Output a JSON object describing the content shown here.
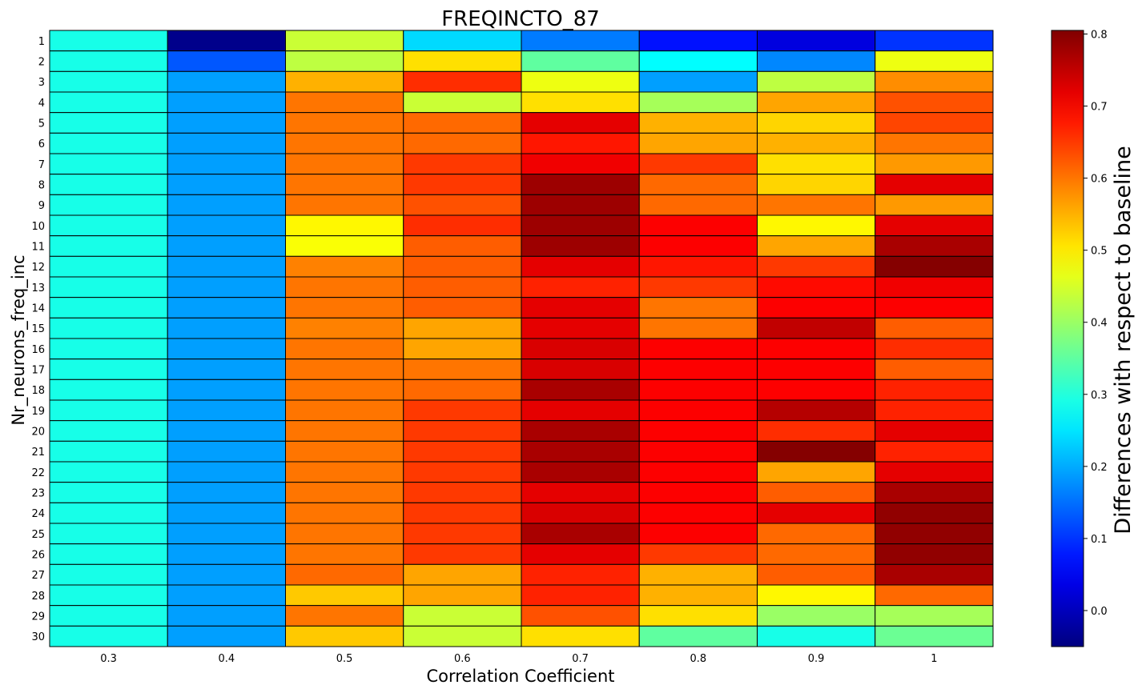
{
  "chart_data": {
    "type": "heatmap",
    "title": "FREQINCTO_87",
    "xlabel": "Correlation Coefficient",
    "ylabel": "Nr_neurons_freq_inc",
    "colorbar_label": "Differences with respect to baseline",
    "colormap": "jet",
    "vmin": -0.05,
    "vmax": 0.805,
    "colorbar_ticks": [
      "0.0",
      "0.1",
      "0.2",
      "0.3",
      "0.4",
      "0.5",
      "0.6",
      "0.7",
      "0.8"
    ],
    "x_categories": [
      "0.3",
      "0.4",
      "0.5",
      "0.6",
      "0.7",
      "0.8",
      "0.9",
      "1"
    ],
    "y_categories": [
      "1",
      "2",
      "3",
      "4",
      "5",
      "6",
      "7",
      "8",
      "9",
      "10",
      "11",
      "12",
      "13",
      "14",
      "15",
      "16",
      "17",
      "18",
      "19",
      "20",
      "21",
      "22",
      "23",
      "24",
      "25",
      "26",
      "27",
      "28",
      "29",
      "30"
    ],
    "values": [
      [
        0.29,
        -0.04,
        0.44,
        0.24,
        0.16,
        0.07,
        0.03,
        0.1
      ],
      [
        0.29,
        0.13,
        0.43,
        0.51,
        0.35,
        0.27,
        0.17,
        0.47
      ],
      [
        0.29,
        0.19,
        0.55,
        0.66,
        0.47,
        0.19,
        0.43,
        0.58
      ],
      [
        0.29,
        0.19,
        0.6,
        0.44,
        0.51,
        0.41,
        0.56,
        0.63
      ],
      [
        0.29,
        0.19,
        0.6,
        0.61,
        0.72,
        0.55,
        0.52,
        0.64
      ],
      [
        0.29,
        0.19,
        0.6,
        0.61,
        0.68,
        0.56,
        0.55,
        0.6
      ],
      [
        0.29,
        0.19,
        0.6,
        0.65,
        0.71,
        0.65,
        0.51,
        0.57
      ],
      [
        0.29,
        0.19,
        0.6,
        0.65,
        0.78,
        0.61,
        0.52,
        0.72
      ],
      [
        0.29,
        0.19,
        0.6,
        0.63,
        0.78,
        0.61,
        0.6,
        0.57
      ],
      [
        0.29,
        0.19,
        0.49,
        0.66,
        0.78,
        0.7,
        0.49,
        0.72
      ],
      [
        0.29,
        0.19,
        0.48,
        0.62,
        0.78,
        0.7,
        0.56,
        0.77
      ],
      [
        0.29,
        0.19,
        0.59,
        0.62,
        0.72,
        0.68,
        0.65,
        0.8
      ],
      [
        0.29,
        0.19,
        0.6,
        0.62,
        0.67,
        0.65,
        0.69,
        0.71
      ],
      [
        0.29,
        0.19,
        0.6,
        0.62,
        0.72,
        0.6,
        0.7,
        0.7
      ],
      [
        0.29,
        0.19,
        0.59,
        0.56,
        0.72,
        0.6,
        0.75,
        0.62
      ],
      [
        0.29,
        0.19,
        0.6,
        0.56,
        0.73,
        0.7,
        0.7,
        0.66
      ],
      [
        0.29,
        0.19,
        0.6,
        0.6,
        0.73,
        0.7,
        0.7,
        0.62
      ],
      [
        0.29,
        0.19,
        0.6,
        0.61,
        0.77,
        0.7,
        0.7,
        0.67
      ],
      [
        0.29,
        0.19,
        0.6,
        0.65,
        0.72,
        0.7,
        0.76,
        0.67
      ],
      [
        0.29,
        0.19,
        0.6,
        0.65,
        0.77,
        0.7,
        0.66,
        0.72
      ],
      [
        0.29,
        0.19,
        0.6,
        0.65,
        0.77,
        0.7,
        0.8,
        0.67
      ],
      [
        0.29,
        0.19,
        0.6,
        0.65,
        0.77,
        0.7,
        0.56,
        0.72
      ],
      [
        0.29,
        0.19,
        0.6,
        0.65,
        0.72,
        0.7,
        0.62,
        0.77
      ],
      [
        0.29,
        0.19,
        0.6,
        0.65,
        0.73,
        0.7,
        0.72,
        0.79
      ],
      [
        0.29,
        0.19,
        0.6,
        0.65,
        0.77,
        0.7,
        0.61,
        0.79
      ],
      [
        0.29,
        0.19,
        0.6,
        0.65,
        0.72,
        0.65,
        0.61,
        0.79
      ],
      [
        0.29,
        0.19,
        0.61,
        0.56,
        0.67,
        0.55,
        0.62,
        0.77
      ],
      [
        0.29,
        0.19,
        0.53,
        0.56,
        0.67,
        0.55,
        0.49,
        0.61
      ],
      [
        0.29,
        0.19,
        0.6,
        0.44,
        0.63,
        0.51,
        0.4,
        0.41
      ],
      [
        0.29,
        0.19,
        0.53,
        0.44,
        0.51,
        0.35,
        0.29,
        0.36
      ]
    ]
  }
}
